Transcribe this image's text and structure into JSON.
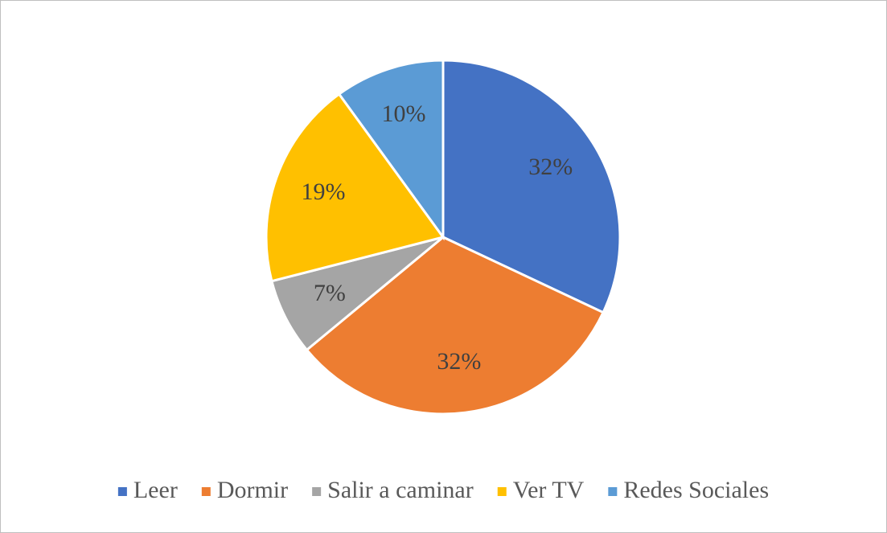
{
  "chart_data": {
    "type": "pie",
    "categories": [
      "Leer",
      "Dormir",
      "Salir a caminar",
      "Ver TV",
      "Redes Sociales"
    ],
    "values": [
      32,
      32,
      7,
      19,
      10
    ],
    "value_labels": [
      "32%",
      "32%",
      "7%",
      "19%",
      "10%"
    ],
    "colors": [
      "#4472c4",
      "#ed7d31",
      "#a5a5a5",
      "#ffc000",
      "#5b9bd5"
    ],
    "legend": "bottom"
  }
}
